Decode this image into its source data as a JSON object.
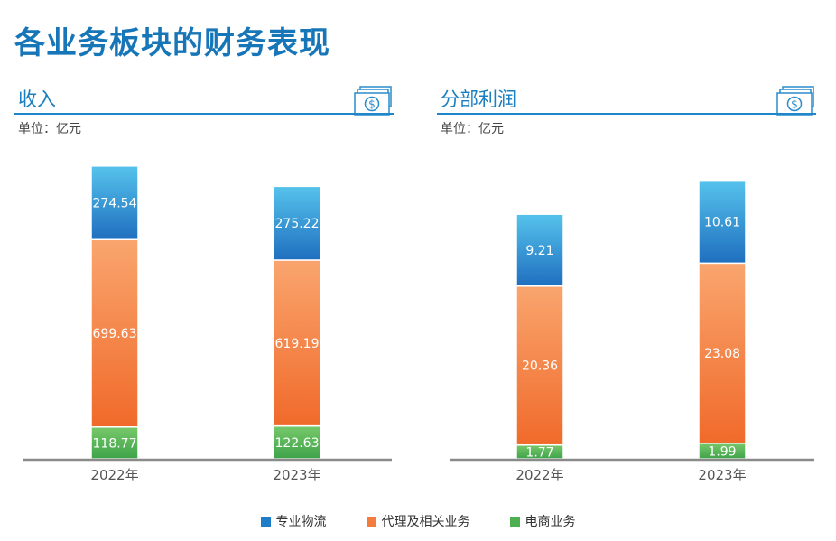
{
  "title": "各业务板块的财务表现",
  "legend": [
    {
      "label": "专业物流",
      "color": "#1f7cc7"
    },
    {
      "label": "代理及相关业务",
      "color": "#f47c3c"
    },
    {
      "label": "电商业务",
      "color": "#4caf50"
    }
  ],
  "chart_data": [
    {
      "type": "bar",
      "stacked": true,
      "title": "收入",
      "unit": "单位：亿元",
      "categories": [
        "2022年",
        "2023年"
      ],
      "series": [
        {
          "name": "电商业务",
          "values": [
            118.77,
            122.63
          ],
          "color_top": "#77c86a",
          "color_bottom": "#3fa34a"
        },
        {
          "name": "代理及相关业务",
          "values": [
            699.63,
            619.19
          ],
          "color_top": "#f9a56e",
          "color_bottom": "#f06a2a"
        },
        {
          "name": "专业物流",
          "values": [
            274.54,
            275.22
          ],
          "color_top": "#56c3ec",
          "color_bottom": "#1f6fbf"
        }
      ],
      "ylim": [
        0,
        1180
      ],
      "grid": false
    },
    {
      "type": "bar",
      "stacked": true,
      "title": "分部利润",
      "unit": "单位：亿元",
      "categories": [
        "2022年",
        "2023年"
      ],
      "series": [
        {
          "name": "电商业务",
          "values": [
            1.77,
            1.99
          ],
          "color_top": "#77c86a",
          "color_bottom": "#3fa34a"
        },
        {
          "name": "代理及相关业务",
          "values": [
            20.36,
            23.08
          ],
          "color_top": "#f9a56e",
          "color_bottom": "#f06a2a"
        },
        {
          "name": "专业物流",
          "values": [
            9.21,
            10.61
          ],
          "color_top": "#56c3ec",
          "color_bottom": "#1f6fbf"
        }
      ],
      "ylim": [
        0,
        40.5
      ],
      "grid": false
    }
  ]
}
